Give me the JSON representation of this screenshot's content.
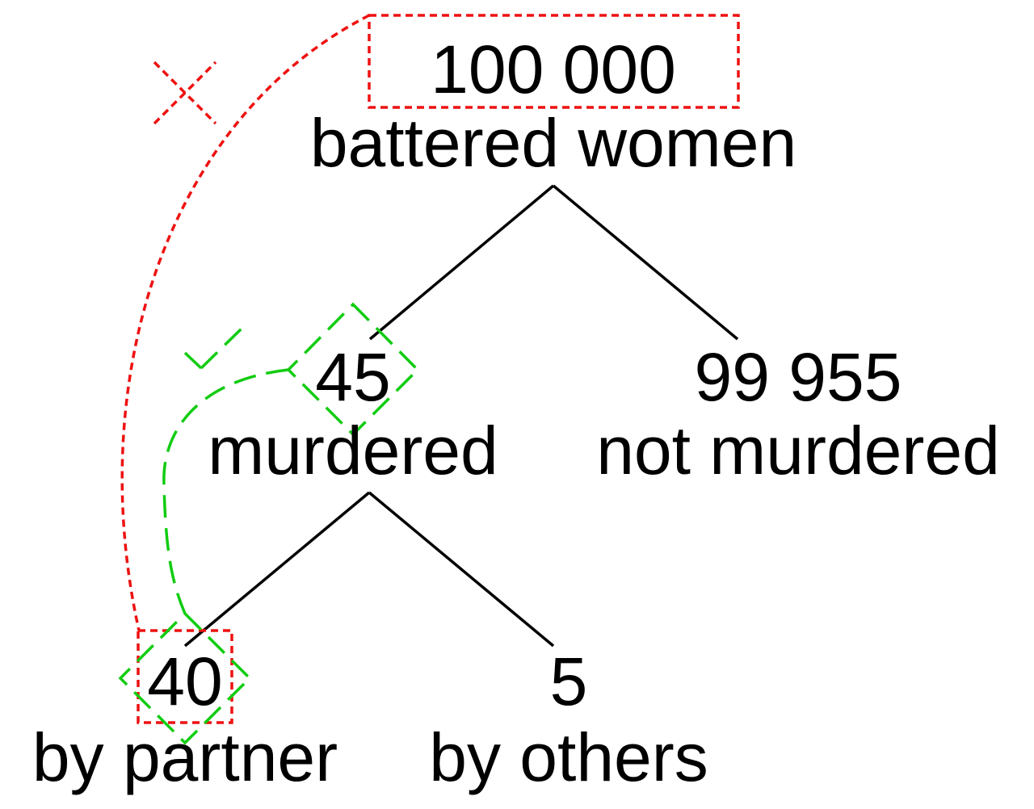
{
  "nodes": {
    "root": {
      "number": "100 000",
      "caption": "battered women"
    },
    "murdered": {
      "number": "45",
      "caption": "murdered"
    },
    "not_murdered": {
      "number": "99 955",
      "caption": "not murdered"
    },
    "by_partner": {
      "number": "40",
      "caption": "by partner"
    },
    "by_others": {
      "number": "5",
      "caption": "by others"
    }
  },
  "colors": {
    "tree": "#000000",
    "wrong_comparison": "#ee1111",
    "right_comparison": "#11cc11"
  },
  "icons": {
    "wrong": "cross-mark-icon",
    "right": "check-mark-icon"
  }
}
